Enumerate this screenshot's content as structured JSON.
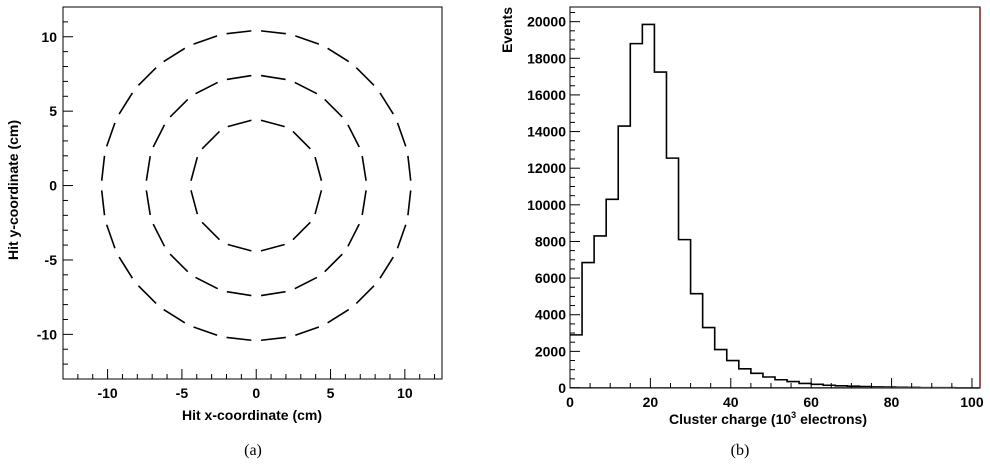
{
  "chart_data": [
    {
      "type": "scatter",
      "xlabel": "Hit x-coordinate (cm)",
      "ylabel": "Hit y-coordinate (cm)",
      "xlim": [
        -13,
        12.5
      ],
      "ylim": [
        -13,
        12
      ],
      "xticks": [
        "-10",
        "-5",
        "0",
        "5",
        "10"
      ],
      "yticks": [
        "10",
        "5",
        "0",
        "-5",
        "-10"
      ],
      "xtick_values": [
        -10,
        -5,
        0,
        5,
        10
      ],
      "ytick_values": [
        10,
        5,
        0,
        -5,
        -10
      ],
      "caption": "(a)",
      "rings": [
        {
          "radius": 4.4,
          "segments": 12
        },
        {
          "radius": 7.4,
          "segments": 20
        },
        {
          "radius": 10.4,
          "segments": 28
        }
      ]
    },
    {
      "type": "bar",
      "xlabel_prefix": "Cluster charge (10",
      "xlabel_sup": "3",
      "xlabel_suffix": " electrons)",
      "ylabel": "Events",
      "xlim": [
        0,
        102
      ],
      "ylim": [
        0,
        20800
      ],
      "xticks": [
        "0",
        "20",
        "40",
        "60",
        "80",
        "100"
      ],
      "xtick_values": [
        0,
        20,
        40,
        60,
        80,
        100
      ],
      "yticks": [
        "0",
        "2000",
        "4000",
        "6000",
        "8000",
        "10000",
        "12000",
        "14000",
        "16000",
        "18000",
        "20000"
      ],
      "ytick_values": [
        0,
        2000,
        4000,
        6000,
        8000,
        10000,
        12000,
        14000,
        16000,
        18000,
        20000
      ],
      "bin_width": 3,
      "bins": [
        0,
        3,
        6,
        9,
        12,
        15,
        18,
        21,
        24,
        27,
        30,
        33,
        36,
        39,
        42,
        45,
        48,
        51,
        54,
        57,
        60,
        63,
        66,
        69,
        72,
        75,
        78,
        81,
        84,
        87,
        90,
        93,
        96,
        99
      ],
      "values": [
        2900,
        6850,
        8300,
        10300,
        14300,
        18800,
        19850,
        17250,
        12550,
        8100,
        5150,
        3300,
        2100,
        1500,
        1050,
        800,
        600,
        450,
        350,
        250,
        200,
        150,
        120,
        100,
        80,
        60,
        50,
        40,
        30,
        20,
        20,
        15,
        10,
        10
      ],
      "caption": "(b)"
    }
  ]
}
